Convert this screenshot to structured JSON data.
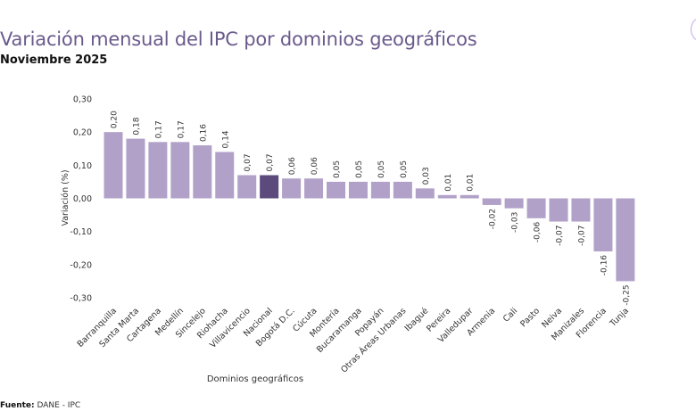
{
  "header": {
    "title": "Variación mensual del IPC por dominios geográficos",
    "subtitle": "Noviembre 2025"
  },
  "footer": {
    "source_label": "Fuente:",
    "source_value": " DANE - IPC"
  },
  "colors": {
    "bar": "#b1a1c9",
    "highlight": "#5c4a7d",
    "title": "#6a5a8c",
    "text": "#333333"
  },
  "chart_data": {
    "type": "bar",
    "title": "Variación mensual del IPC por dominios geográficos",
    "subtitle": "Noviembre 2025",
    "xlabel": "Dominios geográficos",
    "ylabel": "Variación (%)",
    "ylim": [
      -0.3,
      0.3
    ],
    "yticks": [
      0.3,
      0.2,
      0.1,
      0.0,
      -0.1,
      -0.2,
      -0.3
    ],
    "ytick_labels": [
      "0,30",
      "0,20",
      "0,10",
      "0,00",
      "-0,10",
      "-0,20",
      "-0,30"
    ],
    "grid": false,
    "legend": "none",
    "highlight_category": "Nacional",
    "categories": [
      "Barranquilla",
      "Santa Marta",
      "Cartagena",
      "Medellín",
      "Sincelejo",
      "Riohacha",
      "Villavicencio",
      "Nacional",
      "Bogotá D.C.",
      "Cúcuta",
      "Montería",
      "Bucaramanga",
      "Popayán",
      "Otras Áreas Urbanas",
      "Ibagué",
      "Pereira",
      "Valledupar",
      "Armenia",
      "Cali",
      "Pasto",
      "Neiva",
      "Manizales",
      "Florencia",
      "Tunja"
    ],
    "values": [
      0.2,
      0.18,
      0.17,
      0.17,
      0.16,
      0.14,
      0.07,
      0.07,
      0.06,
      0.06,
      0.05,
      0.05,
      0.05,
      0.05,
      0.03,
      0.01,
      0.01,
      -0.02,
      -0.03,
      -0.06,
      -0.07,
      -0.07,
      -0.16,
      -0.25
    ],
    "data_labels": [
      "0,20",
      "0,18",
      "0,17",
      "0,17",
      "0,16",
      "0,14",
      "0,07",
      "0,07",
      "0,06",
      "0,06",
      "0,05",
      "0,05",
      "0,05",
      "0,05",
      "0,03",
      "0,01",
      "0,01",
      "-0,02",
      "-0,03",
      "-0,06",
      "-0,07",
      "-0,07",
      "-0,16",
      "-0,25"
    ]
  }
}
